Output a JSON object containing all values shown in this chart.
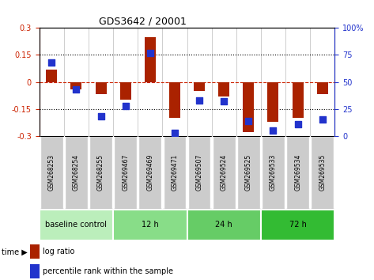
{
  "title": "GDS3642 / 20001",
  "samples": [
    "GSM268253",
    "GSM268254",
    "GSM268255",
    "GSM269467",
    "GSM269469",
    "GSM269471",
    "GSM269507",
    "GSM269524",
    "GSM269525",
    "GSM269533",
    "GSM269534",
    "GSM269535"
  ],
  "log_ratio": [
    0.07,
    -0.04,
    -0.07,
    -0.1,
    0.25,
    -0.2,
    -0.05,
    -0.08,
    -0.28,
    -0.22,
    -0.2,
    -0.07
  ],
  "percentile_rank": [
    68,
    43,
    18,
    28,
    77,
    3,
    33,
    32,
    14,
    5,
    11,
    15
  ],
  "groups": [
    {
      "label": "baseline control",
      "start": 0,
      "end": 3,
      "color": "#bbeebb"
    },
    {
      "label": "12 h",
      "start": 3,
      "end": 6,
      "color": "#88dd88"
    },
    {
      "label": "24 h",
      "start": 6,
      "end": 9,
      "color": "#66cc66"
    },
    {
      "label": "72 h",
      "start": 9,
      "end": 12,
      "color": "#33bb33"
    }
  ],
  "ylim_left": [
    -0.3,
    0.3
  ],
  "ylim_right": [
    0,
    100
  ],
  "yticks_left": [
    -0.3,
    -0.15,
    0,
    0.15,
    0.3
  ],
  "yticks_right": [
    0,
    25,
    50,
    75,
    100
  ],
  "bar_color": "#aa2200",
  "dot_color": "#2233cc",
  "hline_red": "#cc2200",
  "dotline_color": "black",
  "bar_width": 0.45,
  "dot_size": 30,
  "tick_gray": "#cccccc",
  "label_bg_color": "#cccccc"
}
